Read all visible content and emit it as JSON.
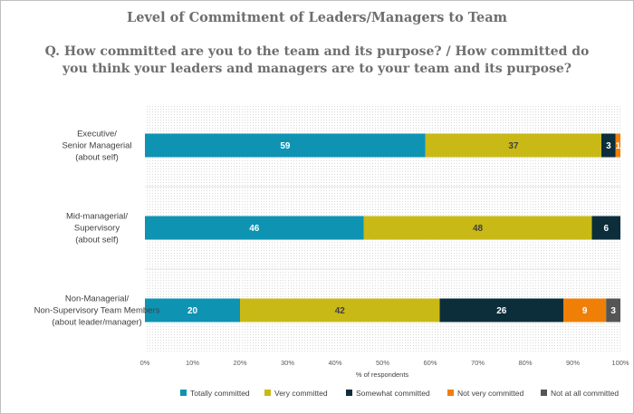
{
  "chart_data": {
    "type": "bar",
    "orientation": "horizontal",
    "stacked": true,
    "title": "Level of Commitment of Leaders/Managers to Team",
    "subtitle": "Q. How committed are you to the team and its purpose? / How committed do you think your leaders and managers are to your team and its purpose?",
    "xlabel": "% of respondents",
    "xlim": [
      0,
      100
    ],
    "xticks": [
      "0%",
      "10%",
      "20%",
      "30%",
      "40%",
      "50%",
      "60%",
      "70%",
      "80%",
      "90%",
      "100%"
    ],
    "categories": [
      [
        "Executive/",
        "Senior Managerial",
        "(about self)"
      ],
      [
        "Mid-managerial/",
        "Supervisory",
        "(about self)"
      ],
      [
        "Non-Managerial/",
        "Non-Supervisory Team Members",
        "(about leader/manager)"
      ]
    ],
    "series": [
      {
        "name": "Totally committed",
        "color": "#0e93b3",
        "label_color": "#ffffff",
        "values": [
          59,
          46,
          20
        ]
      },
      {
        "name": "Very committed",
        "color": "#c9b916",
        "label_color": "#404040",
        "values": [
          37,
          48,
          42
        ]
      },
      {
        "name": "Somewhat committed",
        "color": "#0b2e3a",
        "label_color": "#ffffff",
        "values": [
          3,
          6,
          26
        ]
      },
      {
        "name": "Not very committed",
        "color": "#f07f07",
        "label_color": "#ffffff",
        "values": [
          1,
          0,
          9
        ]
      },
      {
        "name": "Not at all committed",
        "color": "#555555",
        "label_color": "#ffffff",
        "values": [
          0,
          0,
          3
        ]
      }
    ],
    "legend_position": "bottom"
  }
}
